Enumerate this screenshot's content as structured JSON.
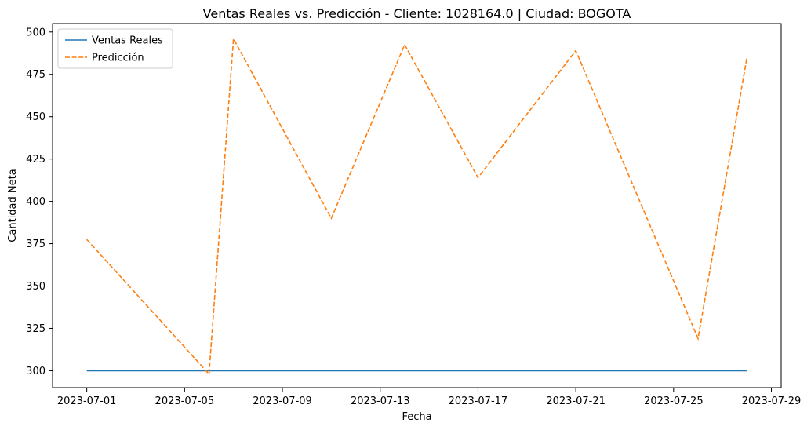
{
  "chart_data": {
    "type": "line",
    "title": "Ventas Reales vs. Predicción - Cliente: 1028164.0 | Ciudad: BOGOTA",
    "xlabel": "Fecha",
    "ylabel": "Cantidad Neta",
    "xlim": [
      "2023-06-29.6",
      "2023-07-29.4"
    ],
    "ylim": [
      290,
      505
    ],
    "x_ticks": [
      "2023-07-01",
      "2023-07-05",
      "2023-07-09",
      "2023-07-13",
      "2023-07-17",
      "2023-07-21",
      "2023-07-25",
      "2023-07-29"
    ],
    "y_ticks": [
      300,
      325,
      350,
      375,
      400,
      425,
      450,
      475,
      500
    ],
    "grid": false,
    "legend_position": "upper-left",
    "series": [
      {
        "name": "Ventas Reales",
        "color": "#1f77b4",
        "style": "solid",
        "x": [
          "2023-07-01",
          "2023-07-06",
          "2023-07-07",
          "2023-07-11",
          "2023-07-14",
          "2023-07-17",
          "2023-07-21",
          "2023-07-26",
          "2023-07-28"
        ],
        "y": [
          300,
          300,
          300,
          300,
          300,
          300,
          300,
          300,
          300
        ]
      },
      {
        "name": "Predicción",
        "color": "#ff7f0e",
        "style": "dashed",
        "x": [
          "2023-07-01",
          "2023-07-06",
          "2023-07-07",
          "2023-07-11",
          "2023-07-14",
          "2023-07-17",
          "2023-07-21",
          "2023-07-26",
          "2023-07-28"
        ],
        "y": [
          377.5,
          298,
          496,
          390,
          492.5,
          414,
          489,
          319,
          485
        ]
      }
    ]
  }
}
